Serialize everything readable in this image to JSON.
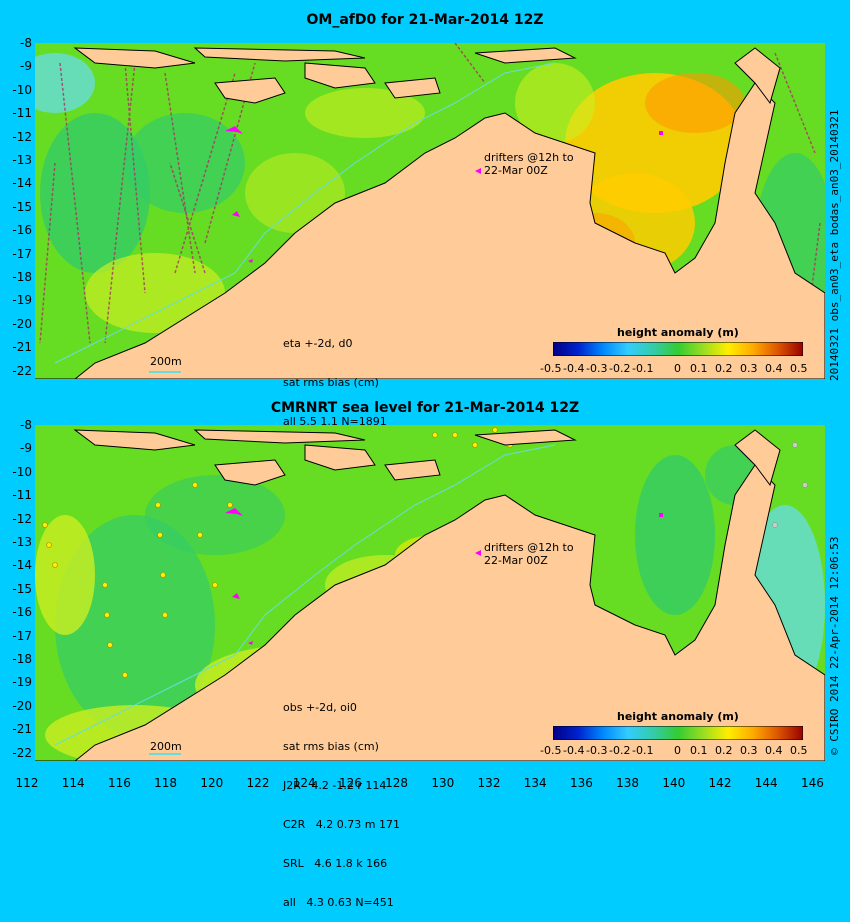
{
  "panels": [
    {
      "title": "OM_afD0 for 21-Mar-2014 12Z",
      "annotation": [
        "eta +-2d, d0",
        "sat rms bias (cm)",
        "all 5.5 1.1 N=1891"
      ],
      "drifters": [
        "drifters @12h to",
        "22-Mar 00Z"
      ],
      "scale_label": "200m",
      "colorbar_title": "height anomaly (m)",
      "colorbar_ticks": [
        "-0.5",
        "-0.4",
        "-0.3",
        "-0.2",
        "-0.1",
        "0",
        "0.1",
        "0.2",
        "0.3",
        "0.4",
        "0.5"
      ],
      "side_label": "20140321 obs_an03_eta    bodas_an03_20140321"
    },
    {
      "title": "CMRNRT sea level  for 21-Mar-2014 12Z",
      "annotation": [
        "obs +-2d, oi0",
        "sat rms bias (cm)",
        "J2R   4.2 -1.2 r 114",
        "C2R   4.2 0.73 m 171",
        "SRL   4.6 1.8 k 166",
        "all   4.3 0.63 N=451"
      ],
      "drifters": [
        "drifters @12h to",
        "22-Mar 00Z"
      ],
      "scale_label": "200m",
      "colorbar_title": "height anomaly (m)",
      "colorbar_ticks": [
        "-0.5",
        "-0.4",
        "-0.3",
        "-0.2",
        "-0.1",
        "0",
        "0.1",
        "0.2",
        "0.3",
        "0.4",
        "0.5"
      ],
      "side_label": "© CSIRO 2014  22-Apr-2014 12:06:53"
    }
  ],
  "axes": {
    "lat_ticks": [
      "-8",
      "-9",
      "-10",
      "-11",
      "-12",
      "-13",
      "-14",
      "-15",
      "-16",
      "-17",
      "-18",
      "-19",
      "-20",
      "-21",
      "-22"
    ],
    "lon_ticks": [
      "112",
      "114",
      "116",
      "118",
      "120",
      "122",
      "124",
      "126",
      "128",
      "130",
      "132",
      "134",
      "136",
      "138",
      "140",
      "142",
      "144",
      "146"
    ]
  },
  "colors": {
    "background": "#00ccff",
    "land": "#ffcc99",
    "ocean_base": "#66dd22",
    "colorbar": [
      "#000099",
      "#0033cc",
      "#0099ff",
      "#33ccff",
      "#66dddd",
      "#33cc66",
      "#66dd22",
      "#ccee22",
      "#ffcc00",
      "#ff9900",
      "#dd5500",
      "#990000"
    ]
  }
}
